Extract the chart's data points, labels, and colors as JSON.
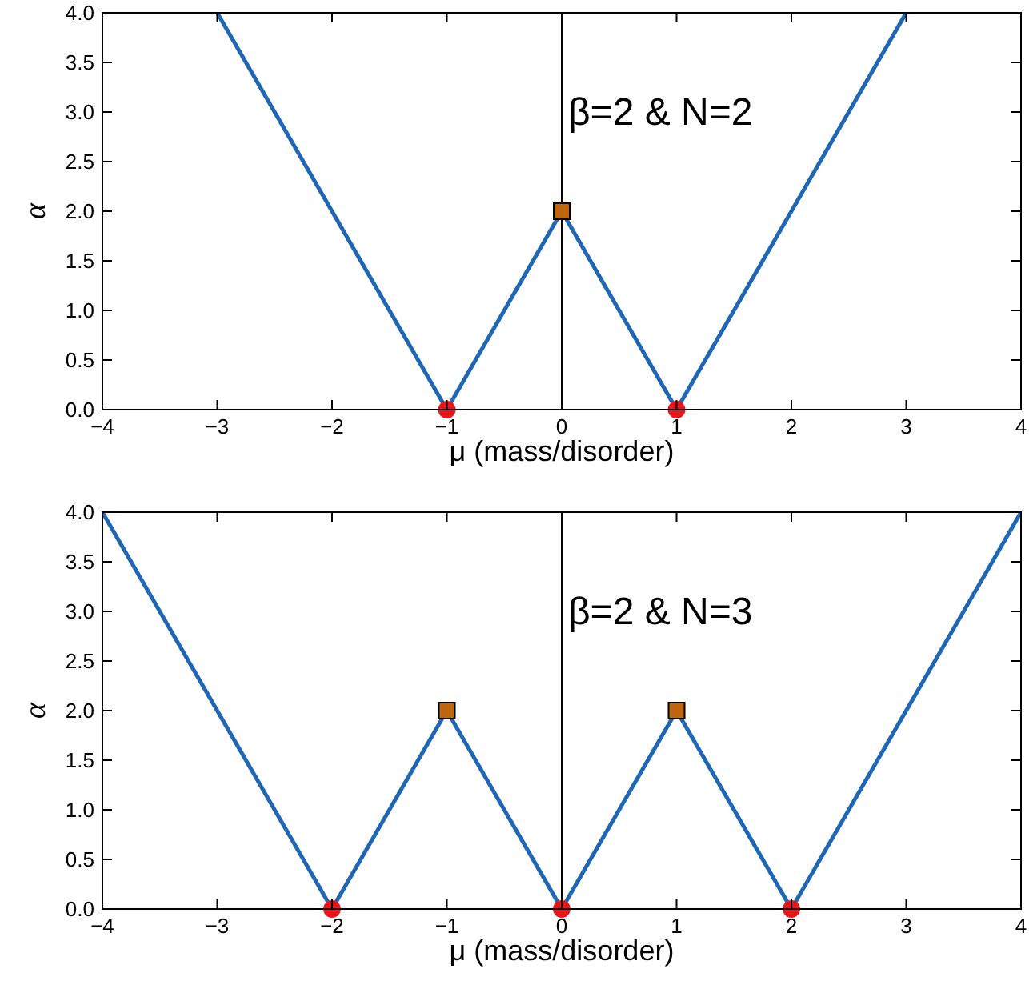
{
  "chart_data": [
    {
      "type": "line",
      "xlabel": "μ (mass/disorder)",
      "ylabel": "α",
      "annotations": [
        "β=2 & N=2"
      ],
      "xlim": [
        -4,
        4
      ],
      "ylim": [
        0,
        4
      ],
      "xticks": [
        {
          "value": -4,
          "label": "−4"
        },
        {
          "value": -3,
          "label": "−3"
        },
        {
          "value": -2,
          "label": "−2"
        },
        {
          "value": -1,
          "label": "−1"
        },
        0,
        1,
        2,
        3,
        4
      ],
      "yticks": [
        {
          "value": 0,
          "label": "0.0"
        },
        {
          "value": 0.5,
          "label": "0.5"
        },
        {
          "value": 1,
          "label": "1.0"
        },
        {
          "value": 1.5,
          "label": "1.5"
        },
        {
          "value": 2,
          "label": "2.0"
        },
        {
          "value": 2.5,
          "label": "2.5"
        },
        {
          "value": 3,
          "label": "3.0"
        },
        {
          "value": 3.5,
          "label": "3.5"
        },
        {
          "value": 4,
          "label": "4.0"
        }
      ],
      "ref_lines": [
        {
          "axis": "x",
          "value": 0,
          "color": "#000000"
        }
      ],
      "series": [
        {
          "type": "line",
          "color": "#1f66b5",
          "marker": "none",
          "x": [
            -3,
            -1,
            0,
            1,
            3
          ],
          "values": [
            4,
            0,
            2,
            0,
            4
          ]
        },
        {
          "type": "scatter",
          "color": "#e8161b",
          "marker": "circle",
          "x": [
            -1,
            1
          ],
          "values": [
            0,
            0
          ]
        },
        {
          "type": "scatter",
          "color": "#c0660e",
          "marker": "square",
          "x": [
            0
          ],
          "values": [
            2
          ]
        }
      ]
    },
    {
      "type": "line",
      "xlabel": "μ (mass/disorder)",
      "ylabel": "α",
      "annotations": [
        "β=2 & N=3"
      ],
      "xlim": [
        -4,
        4
      ],
      "ylim": [
        0,
        4
      ],
      "xticks": [
        {
          "value": -4,
          "label": "−4"
        },
        {
          "value": -3,
          "label": "−3"
        },
        {
          "value": -2,
          "label": "−2"
        },
        {
          "value": -1,
          "label": "−1"
        },
        0,
        1,
        2,
        3,
        4
      ],
      "yticks": [
        {
          "value": 0,
          "label": "0.0"
        },
        {
          "value": 0.5,
          "label": "0.5"
        },
        {
          "value": 1,
          "label": "1.0"
        },
        {
          "value": 1.5,
          "label": "1.5"
        },
        {
          "value": 2,
          "label": "2.0"
        },
        {
          "value": 2.5,
          "label": "2.5"
        },
        {
          "value": 3,
          "label": "3.0"
        },
        {
          "value": 3.5,
          "label": "3.5"
        },
        {
          "value": 4,
          "label": "4.0"
        }
      ],
      "ref_lines": [
        {
          "axis": "x",
          "value": 0,
          "color": "#000000"
        }
      ],
      "series": [
        {
          "type": "line",
          "color": "#1f66b5",
          "marker": "none",
          "x": [
            -4,
            -2,
            -1,
            0,
            1,
            2,
            4
          ],
          "values": [
            4,
            0,
            2,
            0,
            2,
            0,
            4
          ]
        },
        {
          "type": "scatter",
          "color": "#e8161b",
          "marker": "circle",
          "x": [
            -2,
            0,
            2
          ],
          "values": [
            0,
            0,
            0
          ]
        },
        {
          "type": "scatter",
          "color": "#c0660e",
          "marker": "square",
          "x": [
            -1,
            1
          ],
          "values": [
            2,
            2
          ]
        }
      ]
    }
  ]
}
